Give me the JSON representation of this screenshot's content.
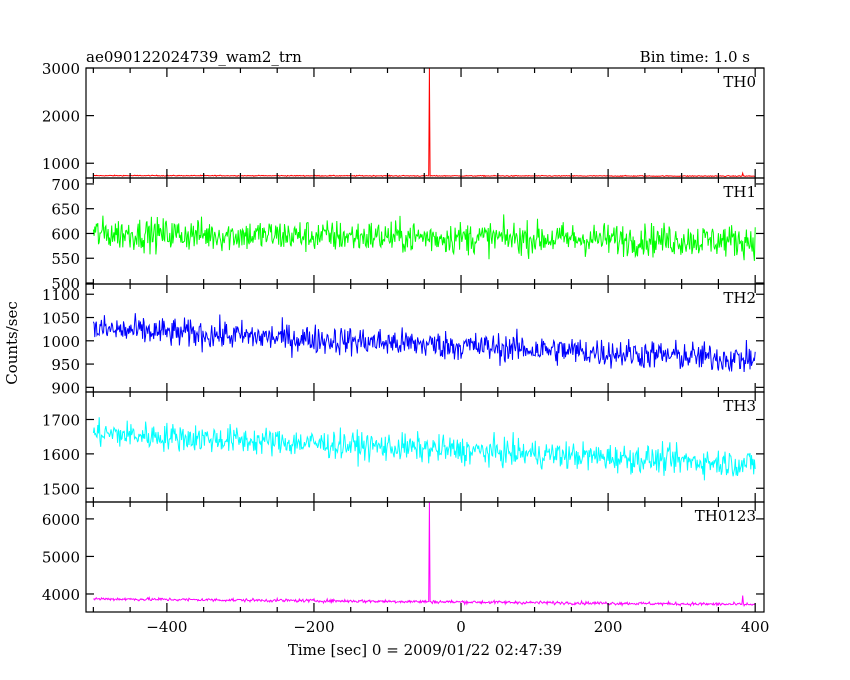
{
  "title_left": "ae090122024739_wam2_trn",
  "title_right": "Bin time: 1.0 s",
  "xlabel": "Time [sec] 0 = 2009/01/22 02:47:39",
  "ylabel": "Counts/sec",
  "chart_data": [
    {
      "type": "line",
      "name": "TH0",
      "color": "#ff0000",
      "xlim": [
        -510,
        412
      ],
      "ylim": [
        690,
        3000
      ],
      "yticks": [
        1000,
        2000,
        3000
      ],
      "yticklabels": [
        "1000",
        "2000",
        "3000"
      ],
      "xticks": [
        -400,
        -200,
        0,
        200,
        400
      ],
      "baseline_start": 740,
      "baseline_end": 730,
      "noise": 12,
      "spikes": [
        {
          "x": -43,
          "y": 3000
        },
        {
          "x": 383,
          "y": 790
        }
      ]
    },
    {
      "type": "line",
      "name": "TH1",
      "color": "#00ff00",
      "xlim": [
        -510,
        412
      ],
      "ylim": [
        498,
        712
      ],
      "yticks": [
        500,
        550,
        600,
        650,
        700
      ],
      "yticklabels": [
        "500",
        "550",
        "600",
        "650",
        "700"
      ],
      "xticks": [
        -400,
        -200,
        0,
        200,
        400
      ],
      "baseline_start": 600,
      "baseline_end": 585,
      "noise": 42,
      "spikes": []
    },
    {
      "type": "line",
      "name": "TH2",
      "color": "#0000ff",
      "xlim": [
        -510,
        412
      ],
      "ylim": [
        890,
        1122
      ],
      "yticks": [
        900,
        950,
        1000,
        1050,
        1100
      ],
      "yticklabels": [
        "900",
        "950",
        "1000",
        "1050",
        "1100"
      ],
      "xticks": [
        -400,
        -200,
        0,
        200,
        400
      ],
      "baseline_start": 1025,
      "baseline_end": 960,
      "noise": 40,
      "spikes": []
    },
    {
      "type": "line",
      "name": "TH3",
      "color": "#00ffff",
      "xlim": [
        -510,
        412
      ],
      "ylim": [
        1460,
        1780
      ],
      "yticks": [
        1500,
        1600,
        1700
      ],
      "yticklabels": [
        "1500",
        "1600",
        "1700"
      ],
      "xticks": [
        -400,
        -200,
        0,
        200,
        400
      ],
      "baseline_start": 1660,
      "baseline_end": 1570,
      "noise": 52,
      "spikes": []
    },
    {
      "type": "line",
      "name": "TH0123",
      "color": "#ff00ff",
      "xlim": [
        -510,
        412
      ],
      "ylim": [
        3520,
        6450
      ],
      "yticks": [
        4000,
        5000,
        6000
      ],
      "yticklabels": [
        "4000",
        "5000",
        "6000"
      ],
      "xticks": [
        -400,
        -200,
        0,
        200,
        400
      ],
      "xticklabels": [
        "−400",
        "−200",
        "0",
        "200",
        "400"
      ],
      "baseline_start": 3870,
      "baseline_end": 3720,
      "noise": 55,
      "spikes": [
        {
          "x": -43,
          "y": 6450
        },
        {
          "x": 383,
          "y": 3960
        }
      ]
    }
  ]
}
